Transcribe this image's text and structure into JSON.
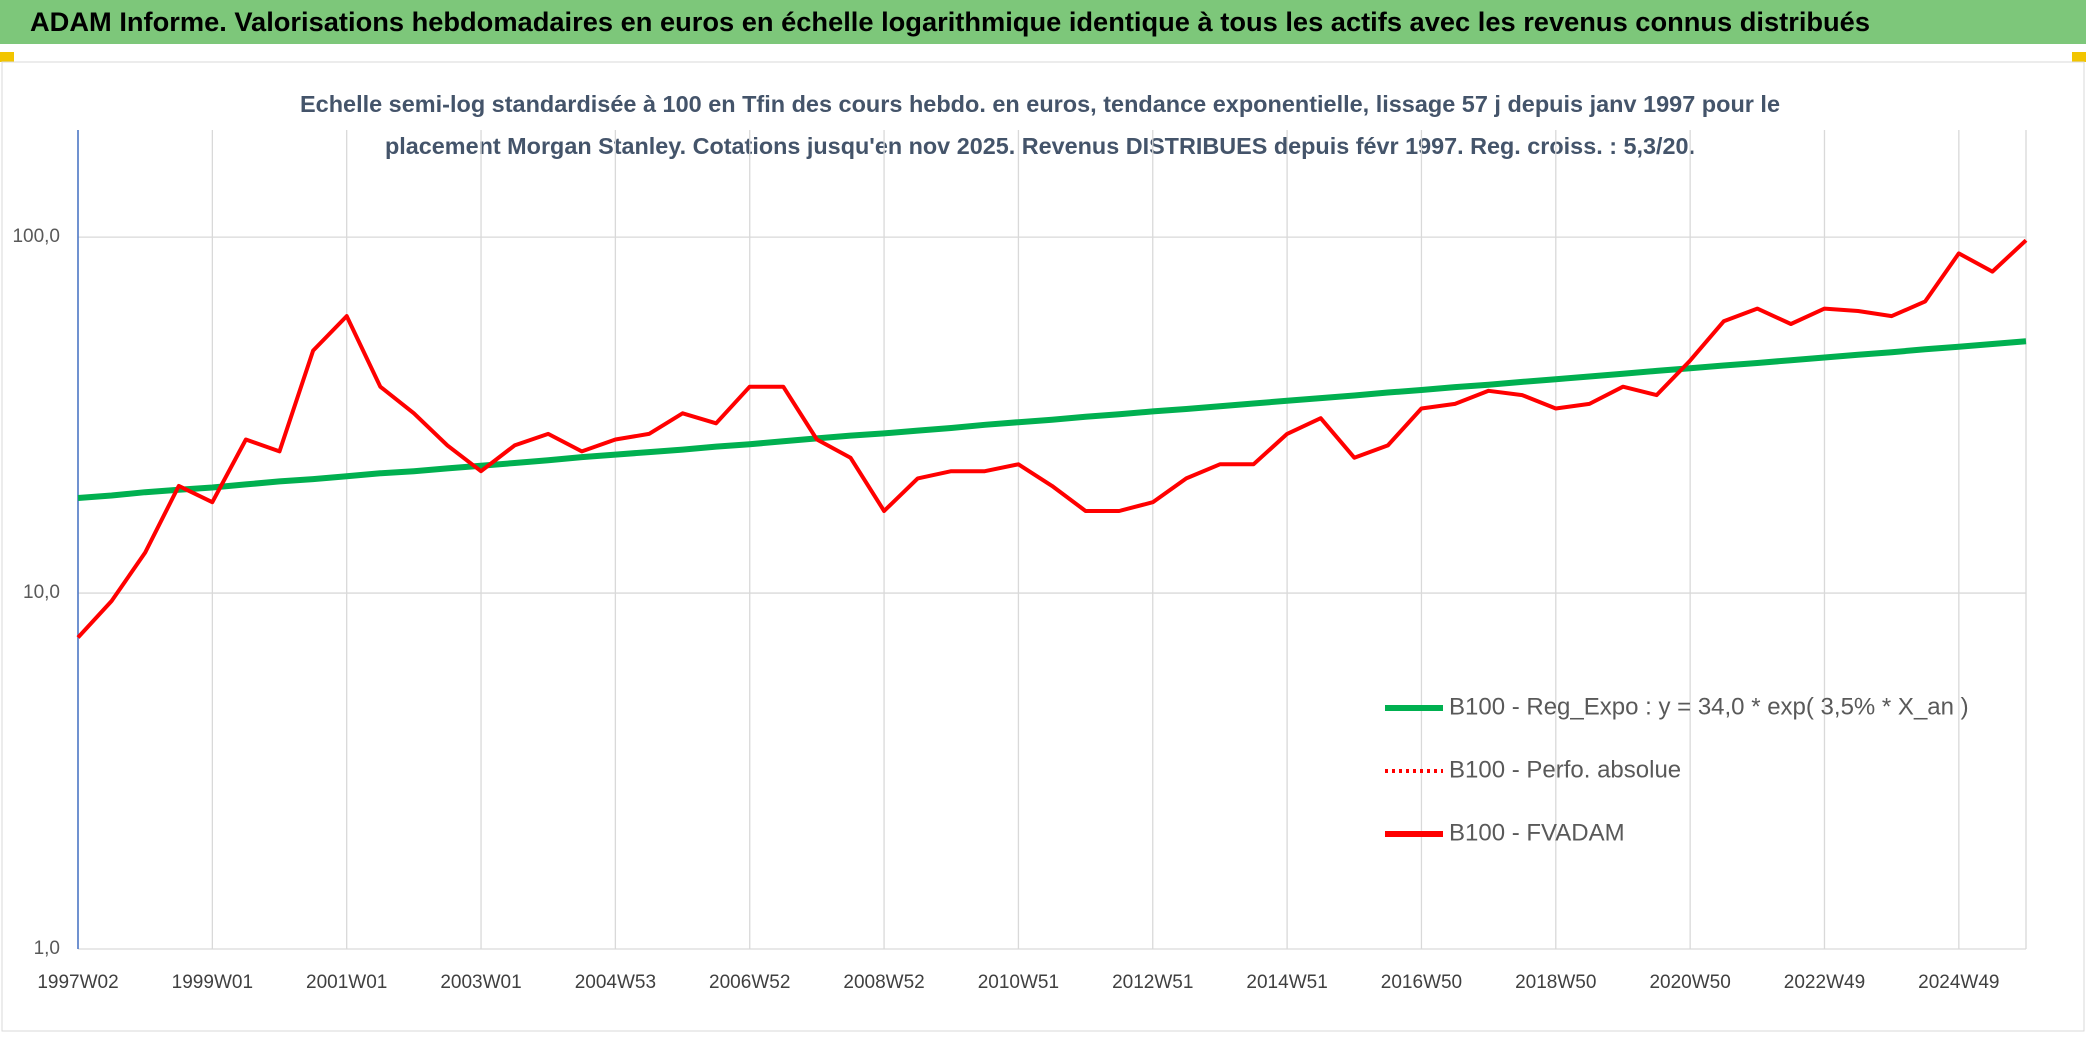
{
  "header": {
    "title": "ADAM Informe. Valorisations hebdomadaires en euros en échelle logarithmique identique à tous les actifs avec les revenus connus distribués"
  },
  "chart_data": {
    "type": "line",
    "subtitle": [
      "Echelle semi-log standardisée à 100 en Tfin des cours hebdo. en euros, tendance exponentielle, lissage 57 j depuis janv 1997 pour le",
      "placement Morgan Stanley. Cotations jusqu'en nov 2025. Revenus DISTRIBUES depuis févr 1997. Reg. croiss. : 5,3/20."
    ],
    "categories": [
      "1997W02",
      null,
      null,
      null,
      "1999W01",
      null,
      null,
      null,
      "2001W01",
      null,
      null,
      null,
      "2003W01",
      null,
      null,
      null,
      "2004W53",
      null,
      null,
      null,
      "2006W52",
      null,
      null,
      null,
      "2008W52",
      null,
      null,
      null,
      "2010W51",
      null,
      null,
      null,
      "2012W51",
      null,
      null,
      null,
      "2014W51",
      null,
      null,
      null,
      "2016W50",
      null,
      null,
      null,
      "2018W50",
      null,
      null,
      null,
      "2020W50",
      null,
      null,
      null,
      "2022W49",
      null,
      null,
      null,
      "2024W49",
      null,
      null
    ],
    "series": [
      {
        "name": "B100 - Reg_Expo : y = 34,0 * exp( 3,5% *  X_an )",
        "color": "#00b050",
        "dash": "solid",
        "values": [
          18.5,
          18.8,
          19.2,
          19.5,
          19.8,
          20.2,
          20.6,
          20.9,
          21.3,
          21.7,
          22.0,
          22.4,
          22.8,
          23.2,
          23.6,
          24.1,
          24.5,
          24.9,
          25.3,
          25.8,
          26.2,
          26.7,
          27.2,
          27.7,
          28.1,
          28.6,
          29.1,
          29.7,
          30.2,
          30.7,
          31.3,
          31.8,
          32.4,
          32.9,
          33.5,
          34.1,
          34.7,
          35.3,
          35.9,
          36.6,
          37.2,
          37.9,
          38.5,
          39.2,
          39.9,
          40.6,
          41.3,
          42.1,
          42.8,
          43.6,
          44.3,
          45.1,
          45.9,
          46.7,
          47.5,
          48.4,
          49.2,
          50.1,
          51.0
        ]
      },
      {
        "name": "B100 - Perfo. absolue",
        "color": "#ff0000",
        "dash": "dotted",
        "values": [
          null,
          null,
          null,
          null,
          null,
          null,
          null,
          null,
          null,
          null,
          null,
          null,
          null,
          null,
          null,
          null,
          null,
          null,
          null,
          null,
          null,
          null,
          null,
          null,
          null,
          null,
          null,
          null,
          null,
          null,
          null,
          null,
          null,
          null,
          null,
          null,
          null,
          null,
          null,
          null,
          null,
          null,
          null,
          null,
          null,
          null,
          null,
          null,
          null,
          null,
          null,
          null,
          null,
          null,
          null,
          null,
          null,
          null,
          null
        ]
      },
      {
        "name": "B100 - FVADAM",
        "color": "#ff0000",
        "dash": "solid",
        "values": [
          7.5,
          9.5,
          13,
          20,
          18,
          27,
          25,
          48,
          60,
          38,
          32,
          26,
          22,
          26,
          28,
          25,
          27,
          28,
          32,
          30,
          38,
          38,
          27,
          24,
          17,
          21,
          22,
          22,
          23,
          20,
          17,
          17,
          18,
          21,
          23,
          23,
          28,
          31,
          24,
          26,
          33,
          34,
          37,
          36,
          33,
          34,
          38,
          36,
          45,
          58,
          63,
          57,
          63,
          62,
          60,
          66,
          90,
          80,
          98
        ]
      }
    ],
    "log_y": true,
    "ylim": [
      1,
      200
    ],
    "yticks": [
      {
        "value": 1,
        "label": "1,0"
      },
      {
        "value": 10,
        "label": "10,0"
      },
      {
        "value": 100,
        "label": "100,0"
      }
    ],
    "grid": true,
    "legend": "lower right"
  }
}
